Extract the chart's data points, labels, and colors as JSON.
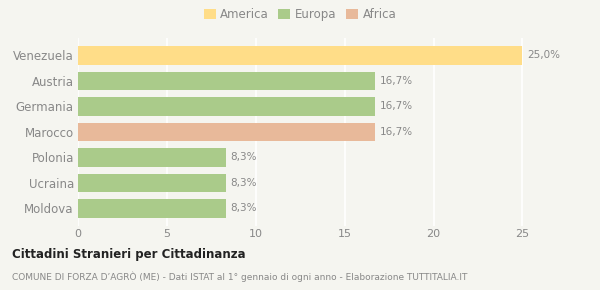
{
  "categories": [
    "Venezuela",
    "Austria",
    "Germania",
    "Marocco",
    "Polonia",
    "Ucraina",
    "Moldova"
  ],
  "values": [
    25.0,
    16.7,
    16.7,
    16.7,
    8.3,
    8.3,
    8.3
  ],
  "colors": [
    "#FFDD88",
    "#AACB8A",
    "#AACB8A",
    "#E8B99A",
    "#AACB8A",
    "#AACB8A",
    "#AACB8A"
  ],
  "labels": [
    "25,0%",
    "16,7%",
    "16,7%",
    "16,7%",
    "8,3%",
    "8,3%",
    "8,3%"
  ],
  "legend": [
    {
      "label": "America",
      "color": "#FFDD88"
    },
    {
      "label": "Europa",
      "color": "#AACB8A"
    },
    {
      "label": "Africa",
      "color": "#E8B99A"
    }
  ],
  "xlim": [
    0,
    27
  ],
  "xticks": [
    0,
    5,
    10,
    15,
    20,
    25
  ],
  "title_bold": "Cittadini Stranieri per Cittadinanza",
  "subtitle": "COMUNE DI FORZA D’AGRÒ (ME) - Dati ISTAT al 1° gennaio di ogni anno - Elaborazione TUTTITALIA.IT",
  "bg_color": "#f5f5f0",
  "grid_color": "#ffffff",
  "label_color": "#888888",
  "title_color": "#222222"
}
